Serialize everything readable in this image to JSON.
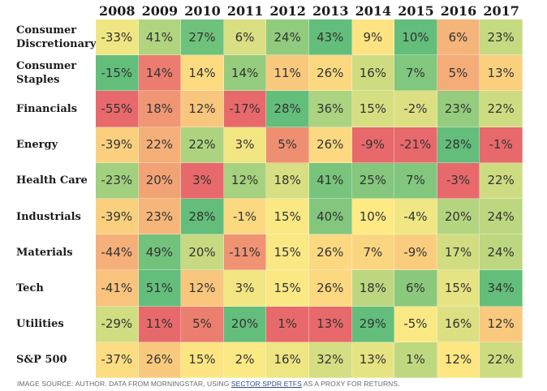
{
  "chart_data": {
    "type": "heatmap",
    "x": [
      "2008",
      "2009",
      "2010",
      "2011",
      "2012",
      "2013",
      "2014",
      "2015",
      "2016",
      "2017"
    ],
    "y": [
      "Consumer\nDiscretionary",
      "Consumer\nStaples",
      "Financials",
      "Energy",
      "Health Care",
      "Industrials",
      "Materials",
      "Tech",
      "Utilities",
      "S&P 500"
    ],
    "values": [
      [
        -33,
        41,
        27,
        6,
        24,
        43,
        9,
        10,
        6,
        23
      ],
      [
        -15,
        14,
        14,
        14,
        11,
        26,
        16,
        7,
        5,
        13
      ],
      [
        -55,
        18,
        12,
        -17,
        28,
        36,
        15,
        -2,
        23,
        22
      ],
      [
        -39,
        22,
        22,
        3,
        5,
        26,
        -9,
        -21,
        28,
        -1
      ],
      [
        -23,
        20,
        3,
        12,
        18,
        41,
        25,
        7,
        -3,
        22
      ],
      [
        -39,
        23,
        28,
        -1,
        15,
        40,
        10,
        -4,
        20,
        24
      ],
      [
        -44,
        49,
        20,
        -11,
        15,
        26,
        7,
        -9,
        17,
        24
      ],
      [
        -41,
        51,
        12,
        3,
        15,
        26,
        18,
        6,
        15,
        34
      ],
      [
        -29,
        11,
        5,
        20,
        1,
        13,
        29,
        -5,
        16,
        12
      ],
      [
        -37,
        26,
        15,
        2,
        16,
        32,
        13,
        1,
        12,
        22
      ]
    ],
    "value_format": "percent",
    "color_scale": "per-year column: red (lowest) - yellow - green (highest)",
    "colors": {
      "low": "#e8696b",
      "mid": "#ffea84",
      "high": "#63be7b"
    }
  },
  "source_note": {
    "prefix": "IMAGE SOURCE: AUTHOR. DATA FROM MORNINGSTAR, USING ",
    "link": "SECTOR SPDR ETFS",
    "suffix": " AS A PROXY FOR RETURNS."
  }
}
